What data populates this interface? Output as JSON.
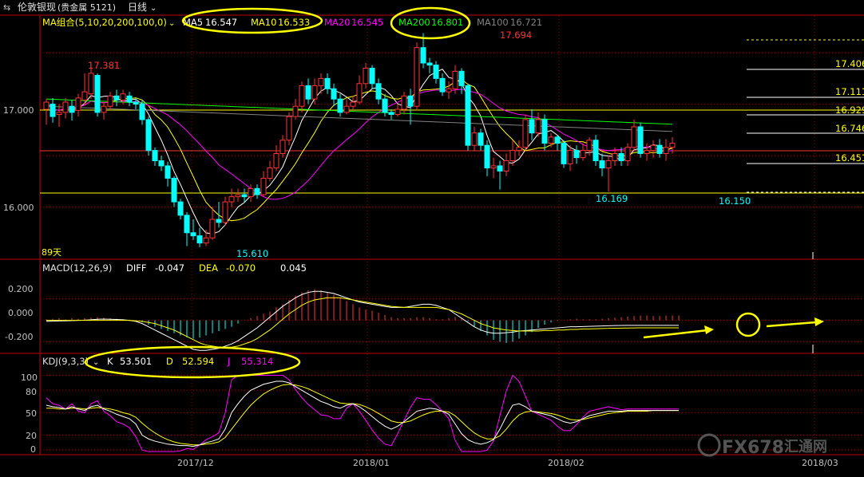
{
  "header": {
    "back_icon": "arrow-left-right-icon",
    "instrument": "伦敦银现",
    "market": "(贵金属 5121)",
    "period": "日线",
    "period_caret": "chevron-down-icon"
  },
  "ma_legend": {
    "label": "MA组合(5,10,20,200,100,0)",
    "items": [
      {
        "name": "MA5",
        "value": "16.547",
        "color": "#ffffff"
      },
      {
        "name": "MA10",
        "value": "16.533",
        "color": "#ffff00"
      },
      {
        "name": "MA20",
        "value": "16.545",
        "color": "#ff00ff"
      },
      {
        "name": "MA200",
        "value": "16.801",
        "color": "#00ff00"
      },
      {
        "name": "MA100",
        "value": "16.721",
        "color": "#808080"
      }
    ]
  },
  "macd_legend": {
    "label": "MACD(12,26,9)",
    "diff_label": "DIFF",
    "diff": "-0.047",
    "dea_label": "DEA",
    "dea": "-0.070",
    "macd": "0.045"
  },
  "kdj_legend": {
    "label": "KDJ(9,3,3)",
    "k_label": "K",
    "k": "53.501",
    "d_label": "D",
    "d": "52.594",
    "j_label": "J",
    "j": "55.314"
  },
  "colors": {
    "up": "#ff3232",
    "down": "#00ffff",
    "grid": "#8b0000",
    "axis": "#c00000",
    "text": "#c0c0c0",
    "highlight": "#ffff00",
    "watermark": "#707070"
  },
  "watermark": {
    "brand": "FX678",
    "cn": "汇通网"
  },
  "chart_data": [
    {
      "type": "candlestick",
      "title": "",
      "ylim": [
        15.5,
        17.85
      ],
      "y_ticks": [
        "17.000",
        "16.000"
      ],
      "x_ticks": [
        "2017/12",
        "2018/01",
        "2018/02",
        "2018/03"
      ],
      "annotations": {
        "high_left": "17.381",
        "high_right": "17.694",
        "low_left": "15.610",
        "low_mid": "16.169",
        "low_right": "16.150",
        "days": "89天"
      },
      "levels": [
        "17.406",
        "17.111",
        "16.929",
        "16.746",
        "16.451"
      ],
      "candles": [
        [
          16.95,
          17.02,
          16.8,
          17.05
        ],
        [
          17.0,
          16.88,
          16.82,
          17.06
        ],
        [
          16.9,
          16.92,
          16.78,
          17.0
        ],
        [
          16.92,
          17.02,
          16.86,
          17.06
        ],
        [
          16.98,
          16.92,
          16.84,
          17.04
        ],
        [
          16.94,
          17.06,
          16.88,
          17.1
        ],
        [
          17.04,
          17.12,
          17.0,
          17.3
        ],
        [
          17.1,
          17.3,
          17.05,
          17.38
        ],
        [
          17.28,
          16.92,
          16.88,
          17.3
        ],
        [
          16.92,
          16.98,
          16.85,
          17.02
        ],
        [
          16.98,
          17.08,
          16.95,
          17.12
        ],
        [
          17.08,
          17.04,
          16.98,
          17.14
        ],
        [
          17.04,
          17.1,
          17.0,
          17.14
        ],
        [
          17.08,
          17.02,
          16.98,
          17.12
        ],
        [
          17.02,
          17.0,
          16.95,
          17.06
        ],
        [
          17.0,
          16.85,
          16.8,
          17.04
        ],
        [
          16.85,
          16.55,
          16.5,
          16.88
        ],
        [
          16.55,
          16.45,
          16.4,
          16.58
        ],
        [
          16.45,
          16.4,
          16.35,
          16.5
        ],
        [
          16.4,
          16.28,
          16.2,
          16.44
        ],
        [
          16.28,
          16.05,
          16.0,
          16.3
        ],
        [
          16.05,
          15.92,
          15.88,
          16.08
        ],
        [
          15.92,
          15.75,
          15.62,
          15.95
        ],
        [
          15.75,
          15.72,
          15.68,
          15.88
        ],
        [
          15.72,
          15.65,
          15.61,
          15.8
        ],
        [
          15.65,
          15.7,
          15.62,
          15.78
        ],
        [
          15.7,
          15.88,
          15.68,
          16.0
        ],
        [
          15.88,
          15.85,
          15.8,
          16.05
        ],
        [
          15.85,
          16.05,
          15.82,
          16.1
        ],
        [
          16.05,
          16.1,
          16.0,
          16.18
        ],
        [
          16.1,
          16.12,
          16.05,
          16.18
        ],
        [
          16.12,
          16.1,
          16.05,
          16.18
        ],
        [
          16.1,
          16.18,
          16.05,
          16.22
        ],
        [
          16.18,
          16.12,
          16.08,
          16.22
        ],
        [
          16.12,
          16.28,
          16.1,
          16.35
        ],
        [
          16.28,
          16.38,
          16.25,
          16.45
        ],
        [
          16.38,
          16.52,
          16.35,
          16.6
        ],
        [
          16.52,
          16.65,
          16.48,
          16.7
        ],
        [
          16.65,
          16.88,
          16.6,
          16.92
        ],
        [
          16.88,
          16.98,
          16.85,
          17.05
        ],
        [
          16.98,
          17.18,
          16.92,
          17.22
        ],
        [
          17.18,
          17.05,
          17.0,
          17.25
        ],
        [
          17.05,
          17.18,
          17.0,
          17.25
        ],
        [
          17.18,
          17.25,
          17.1,
          17.3
        ],
        [
          17.25,
          17.15,
          17.1,
          17.3
        ],
        [
          17.15,
          17.05,
          16.98,
          17.2
        ],
        [
          17.05,
          16.92,
          16.88,
          17.1
        ],
        [
          16.92,
          16.98,
          16.9,
          17.05
        ],
        [
          16.98,
          17.02,
          16.95,
          17.08
        ],
        [
          17.02,
          17.2,
          17.0,
          17.28
        ],
        [
          17.2,
          17.35,
          17.15,
          17.4
        ],
        [
          17.35,
          17.2,
          17.15,
          17.38
        ],
        [
          17.2,
          17.05,
          17.0,
          17.25
        ],
        [
          17.05,
          16.92,
          16.88,
          17.1
        ],
        [
          16.92,
          16.9,
          16.85,
          16.95
        ],
        [
          16.9,
          16.95,
          16.88,
          17.0
        ],
        [
          16.95,
          17.08,
          16.9,
          17.12
        ],
        [
          17.08,
          16.98,
          16.8,
          17.15
        ],
        [
          16.98,
          17.55,
          16.95,
          17.6
        ],
        [
          17.55,
          17.4,
          17.35,
          17.69
        ],
        [
          17.4,
          17.38,
          17.3,
          17.45
        ],
        [
          17.38,
          17.25,
          17.2,
          17.42
        ],
        [
          17.25,
          17.12,
          17.08,
          17.3
        ],
        [
          17.12,
          17.15,
          17.05,
          17.22
        ],
        [
          17.15,
          17.32,
          17.1,
          17.38
        ],
        [
          17.32,
          17.18,
          17.1,
          17.35
        ],
        [
          17.18,
          16.6,
          16.55,
          17.2
        ],
        [
          16.6,
          16.72,
          16.55,
          16.78
        ],
        [
          16.72,
          16.6,
          16.55,
          16.76
        ],
        [
          16.6,
          16.38,
          16.3,
          16.65
        ],
        [
          16.38,
          16.4,
          16.28,
          16.48
        ],
        [
          16.4,
          16.35,
          16.17,
          16.45
        ],
        [
          16.35,
          16.45,
          16.3,
          16.52
        ],
        [
          16.45,
          16.55,
          16.4,
          16.65
        ],
        [
          16.55,
          16.58,
          16.5,
          16.65
        ],
        [
          16.58,
          16.85,
          16.55,
          16.9
        ],
        [
          16.85,
          16.72,
          16.65,
          16.95
        ],
        [
          16.72,
          16.85,
          16.68,
          16.92
        ],
        [
          16.85,
          16.62,
          16.55,
          16.9
        ],
        [
          16.62,
          16.68,
          16.58,
          16.72
        ],
        [
          16.68,
          16.62,
          16.55,
          16.7
        ],
        [
          16.62,
          16.42,
          16.38,
          16.65
        ],
        [
          16.42,
          16.55,
          16.35,
          16.6
        ],
        [
          16.55,
          16.48,
          16.42,
          16.6
        ],
        [
          16.48,
          16.55,
          16.45,
          16.62
        ],
        [
          16.55,
          16.65,
          16.5,
          16.68
        ],
        [
          16.65,
          16.45,
          16.4,
          16.7
        ],
        [
          16.45,
          16.38,
          16.3,
          16.52
        ],
        [
          16.38,
          16.45,
          16.15,
          16.5
        ],
        [
          16.45,
          16.52,
          16.4,
          16.58
        ],
        [
          16.52,
          16.45,
          16.4,
          16.58
        ],
        [
          16.45,
          16.58,
          16.4,
          16.62
        ],
        [
          16.58,
          16.78,
          16.55,
          16.85
        ],
        [
          16.78,
          16.52,
          16.48,
          16.82
        ],
        [
          16.52,
          16.55,
          16.45,
          16.62
        ],
        [
          16.55,
          16.6,
          16.48,
          16.65
        ],
        [
          16.6,
          16.52,
          16.48,
          16.66
        ],
        [
          16.52,
          16.58,
          16.45,
          16.66
        ],
        [
          16.58,
          16.62,
          16.52,
          16.68
        ]
      ]
    },
    {
      "type": "bar+line",
      "title": "MACD",
      "ylim": [
        -0.3,
        0.42
      ],
      "y_ticks": [
        "0.200",
        "0.000",
        "-0.200"
      ],
      "macd_hist": [
        0.01,
        0.015,
        0.02,
        0.01,
        0.02,
        0.015,
        0.02,
        0.025,
        0.03,
        0.025,
        0.02,
        0.015,
        0.01,
        0.005,
        -0.01,
        -0.02,
        -0.04,
        -0.06,
        -0.08,
        -0.1,
        -0.12,
        -0.14,
        -0.16,
        -0.17,
        -0.16,
        -0.14,
        -0.12,
        -0.1,
        -0.08,
        -0.06,
        -0.03,
        0.0,
        0.02,
        0.04,
        0.06,
        0.08,
        0.12,
        0.15,
        0.19,
        0.23,
        0.26,
        0.28,
        0.29,
        0.28,
        0.26,
        0.24,
        0.21,
        0.18,
        0.15,
        0.12,
        0.1,
        0.09,
        0.07,
        0.05,
        0.03,
        0.02,
        0.02,
        0.02,
        0.03,
        0.03,
        0.02,
        0.01,
        0.01,
        0.02,
        0.03,
        0.02,
        -0.01,
        -0.06,
        -0.1,
        -0.14,
        -0.18,
        -0.2,
        -0.21,
        -0.2,
        -0.17,
        -0.14,
        -0.11,
        -0.07,
        -0.04,
        -0.02,
        -0.005,
        0.0,
        0.01,
        0.015,
        0.01,
        0.01,
        0.01,
        0.015,
        0.02,
        0.025,
        0.03,
        0.035,
        0.04,
        0.045,
        0.045,
        0.04,
        0.04,
        0.045,
        0.045,
        0.045
      ],
      "diff": [
        -0.01,
        -0.008,
        -0.006,
        -0.005,
        -0.003,
        0.0,
        0.002,
        0.005,
        0.01,
        0.012,
        0.01,
        0.008,
        0.005,
        0.0,
        -0.01,
        -0.03,
        -0.06,
        -0.09,
        -0.12,
        -0.15,
        -0.18,
        -0.21,
        -0.24,
        -0.27,
        -0.28,
        -0.28,
        -0.27,
        -0.26,
        -0.24,
        -0.22,
        -0.19,
        -0.15,
        -0.11,
        -0.07,
        -0.02,
        0.03,
        0.08,
        0.13,
        0.17,
        0.21,
        0.24,
        0.26,
        0.27,
        0.27,
        0.26,
        0.25,
        0.23,
        0.21,
        0.19,
        0.17,
        0.16,
        0.15,
        0.14,
        0.13,
        0.12,
        0.12,
        0.12,
        0.13,
        0.14,
        0.15,
        0.15,
        0.14,
        0.12,
        0.1,
        0.06,
        0.02,
        -0.02,
        -0.06,
        -0.09,
        -0.11,
        -0.12,
        -0.12,
        -0.115,
        -0.11,
        -0.1,
        -0.095,
        -0.09,
        -0.085,
        -0.08,
        -0.075,
        -0.07,
        -0.065,
        -0.06,
        -0.06,
        -0.058,
        -0.056,
        -0.054,
        -0.052,
        -0.05,
        -0.049,
        -0.048,
        -0.047,
        -0.047,
        -0.047,
        -0.047,
        -0.047,
        -0.047,
        -0.047,
        -0.047,
        -0.047
      ],
      "dea": [
        0.0,
        0.0,
        0.0,
        0.0,
        0.0,
        0.0,
        0.0,
        0.0,
        0.0,
        0.0,
        0.0,
        0.0,
        0.0,
        0.0,
        -0.005,
        -0.01,
        -0.02,
        -0.03,
        -0.05,
        -0.07,
        -0.09,
        -0.12,
        -0.15,
        -0.18,
        -0.21,
        -0.23,
        -0.24,
        -0.25,
        -0.25,
        -0.25,
        -0.24,
        -0.22,
        -0.2,
        -0.17,
        -0.13,
        -0.09,
        -0.04,
        0.01,
        0.06,
        0.1,
        0.14,
        0.17,
        0.19,
        0.2,
        0.21,
        0.21,
        0.21,
        0.2,
        0.19,
        0.18,
        0.17,
        0.16,
        0.15,
        0.14,
        0.13,
        0.125,
        0.12,
        0.12,
        0.12,
        0.12,
        0.12,
        0.12,
        0.11,
        0.1,
        0.08,
        0.06,
        0.03,
        0.0,
        -0.03,
        -0.05,
        -0.07,
        -0.08,
        -0.09,
        -0.095,
        -0.1,
        -0.1,
        -0.1,
        -0.1,
        -0.095,
        -0.095,
        -0.09,
        -0.09,
        -0.085,
        -0.085,
        -0.08,
        -0.08,
        -0.078,
        -0.076,
        -0.075,
        -0.074,
        -0.073,
        -0.072,
        -0.071,
        -0.07,
        -0.07,
        -0.07,
        -0.07,
        -0.07,
        -0.07,
        -0.07
      ]
    },
    {
      "type": "line",
      "title": "KDJ",
      "ylim": [
        -5,
        108
      ],
      "y_ticks": [
        "100",
        "80",
        "50",
        "20",
        "0"
      ],
      "k": [
        60,
        58,
        57,
        55,
        58,
        55,
        53,
        58,
        60,
        55,
        52,
        48,
        45,
        42,
        35,
        20,
        15,
        12,
        10,
        8,
        7,
        6,
        6,
        5,
        7,
        10,
        12,
        15,
        28,
        50,
        62,
        72,
        80,
        84,
        88,
        90,
        92,
        92,
        90,
        85,
        80,
        75,
        70,
        65,
        62,
        58,
        56,
        60,
        62,
        58,
        52,
        45,
        38,
        32,
        28,
        32,
        38,
        45,
        52,
        54,
        56,
        55,
        52,
        48,
        35,
        22,
        14,
        10,
        8,
        10,
        14,
        28,
        45,
        60,
        62,
        58,
        52,
        50,
        48,
        46,
        42,
        38,
        36,
        38,
        42,
        46,
        48,
        50,
        52,
        52,
        52,
        53,
        53,
        53,
        53,
        53,
        53,
        53,
        53,
        53
      ],
      "d": [
        56,
        56,
        55,
        55,
        56,
        56,
        55,
        56,
        57,
        56,
        55,
        53,
        50,
        48,
        44,
        36,
        29,
        23,
        18,
        14,
        11,
        9,
        8,
        7,
        7,
        8,
        9,
        11,
        17,
        28,
        39,
        50,
        60,
        68,
        75,
        80,
        84,
        87,
        88,
        87,
        85,
        82,
        78,
        74,
        70,
        66,
        63,
        62,
        62,
        61,
        58,
        54,
        49,
        44,
        39,
        37,
        37,
        39,
        43,
        47,
        50,
        52,
        52,
        51,
        46,
        38,
        30,
        23,
        18,
        15,
        15,
        19,
        28,
        39,
        47,
        51,
        52,
        51,
        50,
        49,
        47,
        44,
        41,
        40,
        41,
        43,
        45,
        47,
        49,
        50,
        51,
        52,
        52,
        52,
        52,
        53,
        53,
        53,
        53,
        53
      ],
      "j": [
        70,
        62,
        60,
        55,
        62,
        52,
        50,
        62,
        66,
        52,
        46,
        38,
        35,
        30,
        18,
        0,
        -2,
        -2,
        -2,
        -2,
        -2,
        -1,
        2,
        1,
        7,
        14,
        18,
        23,
        50,
        94,
        100,
        100,
        100,
        100,
        100,
        100,
        100,
        100,
        94,
        81,
        70,
        61,
        54,
        47,
        46,
        42,
        42,
        56,
        62,
        52,
        40,
        27,
        16,
        8,
        6,
        22,
        40,
        57,
        70,
        68,
        68,
        61,
        52,
        42,
        13,
        -2,
        -2,
        -2,
        -2,
        0,
        12,
        46,
        79,
        100,
        92,
        72,
        52,
        48,
        44,
        40,
        32,
        26,
        26,
        34,
        44,
        52,
        54,
        56,
        58,
        56,
        54,
        55,
        55,
        55,
        55,
        55,
        55,
        55,
        55,
        55
      ]
    }
  ]
}
